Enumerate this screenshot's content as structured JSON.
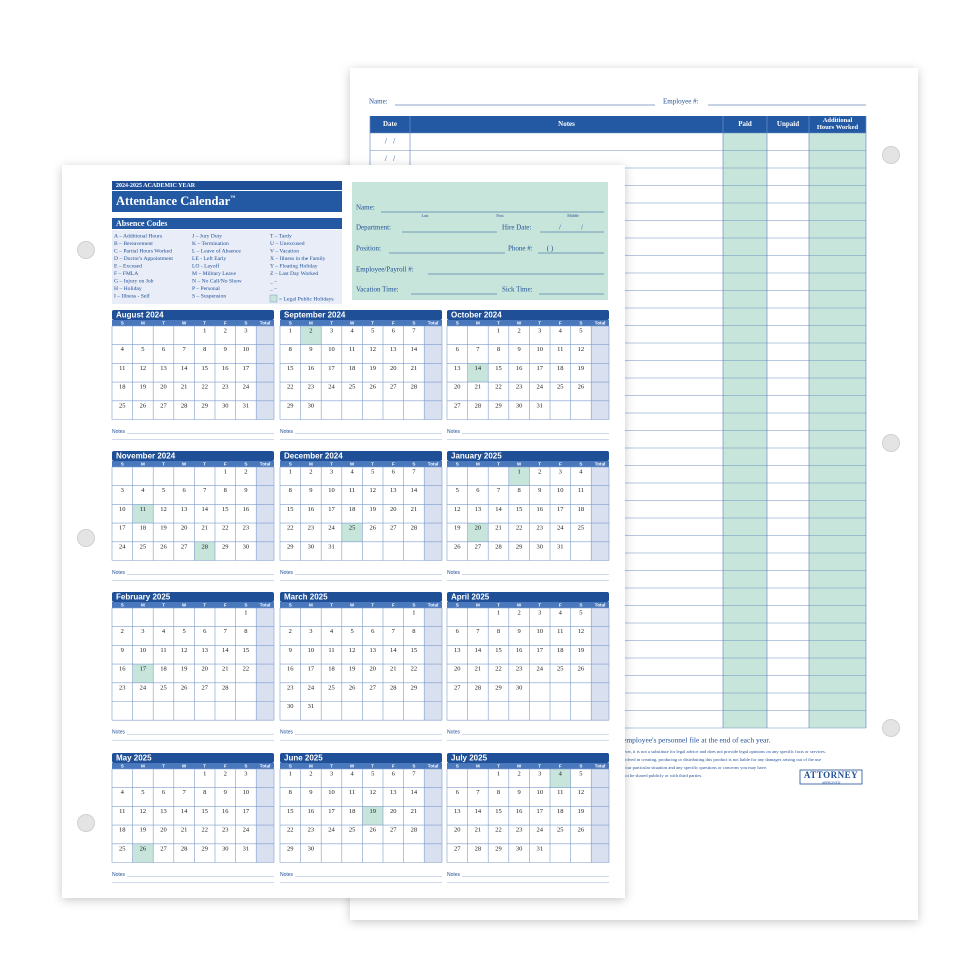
{
  "back_sheet": {
    "name_label": "Name:",
    "employee_label": "Employee #:",
    "table": {
      "headers": [
        "Date",
        "Notes",
        "Paid",
        "Unpaid",
        [
          "Additional",
          "Hours Worked"
        ]
      ],
      "date_placeholder": "/ /"
    },
    "footer": {
      "note": "employee's personnel file at the end of each year.",
      "disclaimer": [
        "ever, it is not a substitute for legal advice and does not provide legal opinions on any specific facts or services.",
        "volved in creating, producing or distributing this product is not liable for any damages arising out of the use",
        "your particular situation and any specific questions or concerns you may have.",
        "not be shared publicly or with third parties."
      ]
    },
    "logo": {
      "top": "ATTORNEY",
      "bottom": "APPROVED"
    }
  },
  "front_sheet": {
    "year": "2024-2025 ACADEMIC YEAR",
    "title": "Attendance Calendar",
    "trademark": "™",
    "absence_codes": {
      "heading": "Absence Codes",
      "columns": [
        [
          "A – Additional Hours",
          "B – Bereavement",
          "C – Partial Hours Worked",
          "D – Doctor's Appointment",
          "E – Excused",
          "F – FMLA",
          "G – Injury on Job",
          "H – Holiday",
          "I – Illness - Self"
        ],
        [
          "J – Jury Duty",
          "K – Termination",
          "L – Leave of Absence",
          "LE - Left Early",
          "LO - Layoff",
          "M – Military Leave",
          "N – No Call/No Show",
          "P – Personal",
          "S – Suspension"
        ],
        [
          "T – Tardy",
          "U – Unexcused",
          "V – Vacation",
          "X – Illness in the Family",
          "Y – Floating Holiday",
          "Z – Last Day Worked",
          "_ –",
          "_ –"
        ]
      ],
      "legend": "= Legal Public Holidays"
    },
    "employee_info": {
      "name": "Name:",
      "name_parts": [
        "Last",
        "First",
        "Middle"
      ],
      "department": "Department:",
      "hire_date": "Hire Date:",
      "slash": "/",
      "position": "Position:",
      "phone": "Phone #:",
      "phone_parens": "(   )",
      "payroll": "Employee/Payroll #:",
      "vacation": "Vacation Time:",
      "sick": "Sick Time:"
    },
    "weekday_headers": [
      "S",
      "M",
      "T",
      "W",
      "T",
      "F",
      "S",
      "Total"
    ],
    "notes_label": "Notes",
    "months": [
      {
        "name": "August 2024",
        "holidays": [],
        "weeks": [
          [
            null,
            null,
            null,
            null,
            1,
            2,
            3
          ],
          [
            4,
            5,
            6,
            7,
            8,
            9,
            10
          ],
          [
            11,
            12,
            13,
            14,
            15,
            16,
            17
          ],
          [
            18,
            19,
            20,
            21,
            22,
            23,
            24
          ],
          [
            25,
            26,
            27,
            28,
            29,
            30,
            31
          ]
        ]
      },
      {
        "name": "September 2024",
        "holidays": [
          2
        ],
        "weeks": [
          [
            1,
            2,
            3,
            4,
            5,
            6,
            7
          ],
          [
            8,
            9,
            10,
            11,
            12,
            13,
            14
          ],
          [
            15,
            16,
            17,
            18,
            19,
            20,
            21
          ],
          [
            22,
            23,
            24,
            25,
            26,
            27,
            28
          ],
          [
            29,
            30
          ]
        ]
      },
      {
        "name": "October 2024",
        "holidays": [
          14
        ],
        "weeks": [
          [
            null,
            null,
            1,
            2,
            3,
            4,
            5
          ],
          [
            6,
            7,
            8,
            9,
            10,
            11,
            12
          ],
          [
            13,
            14,
            15,
            16,
            17,
            18,
            19
          ],
          [
            20,
            21,
            22,
            23,
            24,
            25,
            26
          ],
          [
            27,
            28,
            29,
            30,
            31
          ]
        ]
      },
      {
        "name": "November 2024",
        "holidays": [
          11,
          28
        ],
        "weeks": [
          [
            null,
            null,
            null,
            null,
            null,
            1,
            2
          ],
          [
            3,
            4,
            5,
            6,
            7,
            8,
            9
          ],
          [
            10,
            11,
            12,
            13,
            14,
            15,
            16
          ],
          [
            17,
            18,
            19,
            20,
            21,
            22,
            23
          ],
          [
            24,
            25,
            26,
            27,
            28,
            29,
            30
          ]
        ]
      },
      {
        "name": "December 2024",
        "holidays": [
          25
        ],
        "weeks": [
          [
            1,
            2,
            3,
            4,
            5,
            6,
            7
          ],
          [
            8,
            9,
            10,
            11,
            12,
            13,
            14
          ],
          [
            15,
            16,
            17,
            18,
            19,
            20,
            21
          ],
          [
            22,
            23,
            24,
            25,
            26,
            27,
            28
          ],
          [
            29,
            30,
            31
          ]
        ]
      },
      {
        "name": "January 2025",
        "holidays": [
          1,
          20
        ],
        "weeks": [
          [
            null,
            null,
            null,
            1,
            2,
            3,
            4
          ],
          [
            5,
            6,
            7,
            8,
            9,
            10,
            11
          ],
          [
            12,
            13,
            14,
            15,
            16,
            17,
            18
          ],
          [
            19,
            20,
            21,
            22,
            23,
            24,
            25
          ],
          [
            26,
            27,
            28,
            29,
            30,
            31
          ]
        ]
      },
      {
        "name": "February 2025",
        "holidays": [
          17
        ],
        "weeks": [
          [
            null,
            null,
            null,
            null,
            null,
            null,
            1
          ],
          [
            2,
            3,
            4,
            5,
            6,
            7,
            8
          ],
          [
            9,
            10,
            11,
            12,
            13,
            14,
            15
          ],
          [
            16,
            17,
            18,
            19,
            20,
            21,
            22
          ],
          [
            23,
            24,
            25,
            26,
            27,
            28
          ]
        ]
      },
      {
        "name": "March 2025",
        "holidays": [],
        "weeks": [
          [
            null,
            null,
            null,
            null,
            null,
            null,
            1
          ],
          [
            2,
            3,
            4,
            5,
            6,
            7,
            8
          ],
          [
            9,
            10,
            11,
            12,
            13,
            14,
            15
          ],
          [
            16,
            17,
            18,
            19,
            20,
            21,
            22
          ],
          [
            23,
            24,
            25,
            26,
            27,
            28,
            29
          ],
          [
            30,
            31
          ]
        ]
      },
      {
        "name": "April 2025",
        "holidays": [],
        "weeks": [
          [
            null,
            null,
            1,
            2,
            3,
            4,
            5
          ],
          [
            6,
            7,
            8,
            9,
            10,
            11,
            12
          ],
          [
            13,
            14,
            15,
            16,
            17,
            18,
            19
          ],
          [
            20,
            21,
            22,
            23,
            24,
            25,
            26
          ],
          [
            27,
            28,
            29,
            30
          ]
        ]
      },
      {
        "name": "May 2025",
        "holidays": [
          26
        ],
        "weeks": [
          [
            null,
            null,
            null,
            null,
            1,
            2,
            3
          ],
          [
            4,
            5,
            6,
            7,
            8,
            9,
            10
          ],
          [
            11,
            12,
            13,
            14,
            15,
            16,
            17
          ],
          [
            18,
            19,
            20,
            21,
            22,
            23,
            24
          ],
          [
            25,
            26,
            27,
            28,
            29,
            30,
            31
          ]
        ]
      },
      {
        "name": "June 2025",
        "holidays": [
          19
        ],
        "weeks": [
          [
            1,
            2,
            3,
            4,
            5,
            6,
            7
          ],
          [
            8,
            9,
            10,
            11,
            12,
            13,
            14
          ],
          [
            15,
            16,
            17,
            18,
            19,
            20,
            21
          ],
          [
            22,
            23,
            24,
            25,
            26,
            27,
            28
          ],
          [
            29,
            30
          ]
        ]
      },
      {
        "name": "July 2025",
        "holidays": [
          4
        ],
        "weeks": [
          [
            null,
            null,
            1,
            2,
            3,
            4,
            5
          ],
          [
            6,
            7,
            8,
            9,
            10,
            11,
            12
          ],
          [
            13,
            14,
            15,
            16,
            17,
            18,
            19
          ],
          [
            20,
            21,
            22,
            23,
            24,
            25,
            26
          ],
          [
            27,
            28,
            29,
            30,
            31
          ]
        ]
      }
    ]
  }
}
